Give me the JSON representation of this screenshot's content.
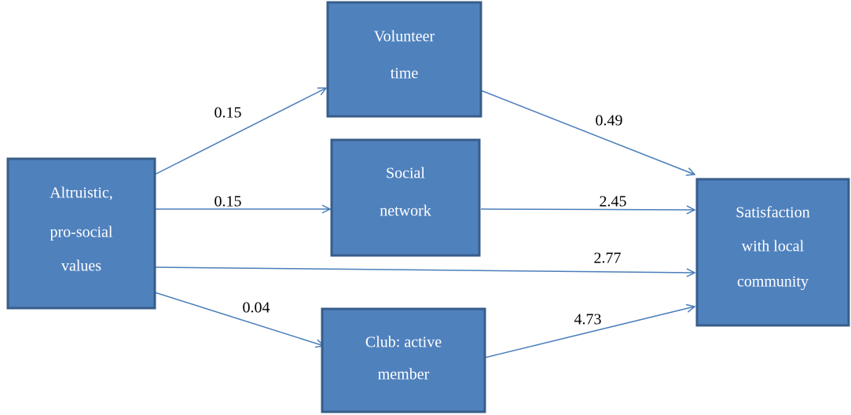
{
  "nodes": [
    {
      "label": [
        "Altruistic,",
        "pro-social",
        "values"
      ]
    },
    {
      "label": [
        "Volunteer",
        "time"
      ]
    },
    {
      "label": [
        "Social",
        "network"
      ]
    },
    {
      "label": [
        "Club: active",
        "member"
      ]
    },
    {
      "label": [
        "Satisfaction",
        "with local",
        "community"
      ]
    }
  ],
  "edges": [
    {
      "from": 0,
      "to": 1,
      "label": "0.15"
    },
    {
      "from": 0,
      "to": 2,
      "label": "0.15"
    },
    {
      "from": 0,
      "to": 4,
      "label": "2.77"
    },
    {
      "from": 0,
      "to": 3,
      "label": "0.04"
    },
    {
      "from": 1,
      "to": 4,
      "label": "0.49"
    },
    {
      "from": 2,
      "to": 4,
      "label": "2.45"
    },
    {
      "from": 3,
      "to": 4,
      "label": "4.73"
    }
  ]
}
